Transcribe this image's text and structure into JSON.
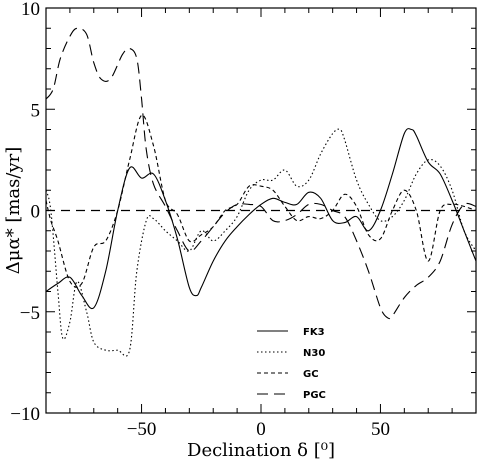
{
  "chart_data": {
    "type": "line",
    "xlabel": "Declination δ [⁰]",
    "ylabel": "Δμα* [mas/yr]",
    "xlim": [
      -90,
      90
    ],
    "ylim": [
      -10,
      10
    ],
    "x_ticks": [
      -50,
      0,
      50
    ],
    "y_ticks": [
      -10,
      -5,
      0,
      5,
      10
    ],
    "grid": false,
    "legend_position": "bottom-right",
    "reference_line": {
      "y": 0,
      "style": "long-dash"
    },
    "series": [
      {
        "name": "FK3",
        "style": "solid",
        "x": [
          -90,
          -85,
          -80,
          -75,
          -70,
          -65,
          -60,
          -55,
          -50,
          -45,
          -40,
          -35,
          -30,
          -27,
          -25,
          -20,
          -15,
          -10,
          -5,
          0,
          5,
          10,
          15,
          20,
          25,
          30,
          35,
          40,
          45,
          50,
          55,
          60,
          63,
          65,
          70,
          75,
          80,
          85,
          90
        ],
        "y": [
          -4,
          -3.6,
          -3.3,
          -4.2,
          -4.8,
          -3,
          0,
          2.1,
          1.6,
          1.8,
          0.5,
          -1.4,
          -3.8,
          -4.2,
          -3.8,
          -2.5,
          -1.5,
          -0.8,
          -0.2,
          0.3,
          0.6,
          0.4,
          0.3,
          0.9,
          0.6,
          -0.5,
          -0.6,
          -0.3,
          -1,
          0,
          1.8,
          3.8,
          4,
          3.7,
          2.4,
          1.8,
          0.5,
          -1,
          -2.5
        ]
      },
      {
        "name": "N30",
        "style": "dotted",
        "x": [
          -90,
          -88,
          -85,
          -83,
          -80,
          -77,
          -73,
          -70,
          -65,
          -60,
          -55,
          -52,
          -48,
          -45,
          -40,
          -35,
          -30,
          -25,
          -20,
          -15,
          -10,
          -5,
          0,
          5,
          10,
          15,
          20,
          25,
          30,
          33,
          35,
          40,
          45,
          50,
          55,
          60,
          65,
          70,
          75,
          80,
          85,
          90
        ],
        "y": [
          1,
          0,
          -4,
          -6.3,
          -5.5,
          -3.5,
          -5,
          -6.5,
          -6.9,
          -6.9,
          -6.9,
          -3,
          -0.5,
          -0.4,
          -1,
          -1.5,
          -2,
          -1,
          -1.5,
          -1,
          -0.3,
          1,
          1.5,
          1.5,
          2,
          1.2,
          1.5,
          2.8,
          3.8,
          4,
          3.5,
          1.5,
          0.3,
          -0.5,
          -0.3,
          0.5,
          1.8,
          2.5,
          2.2,
          1,
          -1,
          -2
        ]
      },
      {
        "name": "GC",
        "style": "dashed",
        "x": [
          -90,
          -88,
          -85,
          -80,
          -75,
          -70,
          -65,
          -60,
          -55,
          -50,
          -45,
          -40,
          -35,
          -30,
          -25,
          -20,
          -15,
          -10,
          -5,
          0,
          5,
          10,
          15,
          20,
          25,
          30,
          35,
          40,
          45,
          50,
          55,
          60,
          65,
          70,
          75,
          80,
          85,
          90
        ],
        "y": [
          0.5,
          -0.5,
          -1.5,
          -3.5,
          -3.6,
          -1.8,
          -1.5,
          0,
          2.5,
          4.7,
          3.2,
          0.5,
          -0.2,
          -1.5,
          -1.2,
          -0.8,
          0,
          0.3,
          1.2,
          1.2,
          1,
          0.2,
          -0.5,
          -0.3,
          -0.4,
          0,
          0.8,
          0.2,
          -1.2,
          -1.4,
          0,
          1,
          0,
          -2.5,
          0,
          0.3,
          0.2,
          0
        ]
      },
      {
        "name": "PGC",
        "style": "long-dash",
        "x": [
          -90,
          -87,
          -84,
          -80,
          -77,
          -73,
          -70,
          -67,
          -63,
          -58,
          -55,
          -52,
          -50,
          -48,
          -45,
          -40,
          -35,
          -30,
          -25,
          -20,
          -15,
          -10,
          -5,
          0,
          5,
          10,
          15,
          20,
          25,
          30,
          35,
          40,
          45,
          50,
          53,
          55,
          60,
          65,
          70,
          75,
          80,
          85,
          90
        ],
        "y": [
          5.5,
          6,
          7.5,
          8.6,
          9,
          8.7,
          7.3,
          6.5,
          6.5,
          7.7,
          8,
          7.5,
          5.5,
          3,
          1.3,
          0.2,
          -1,
          -2,
          -1.5,
          -0.8,
          -0.1,
          0.3,
          0.3,
          0.2,
          -0.5,
          -0.5,
          -0.2,
          0.3,
          0.3,
          0,
          -0.3,
          -1.5,
          -3,
          -4.8,
          -5.3,
          -5.2,
          -4.3,
          -3.7,
          -3.3,
          -2.5,
          -0.7,
          0.3,
          0.2
        ]
      }
    ]
  }
}
